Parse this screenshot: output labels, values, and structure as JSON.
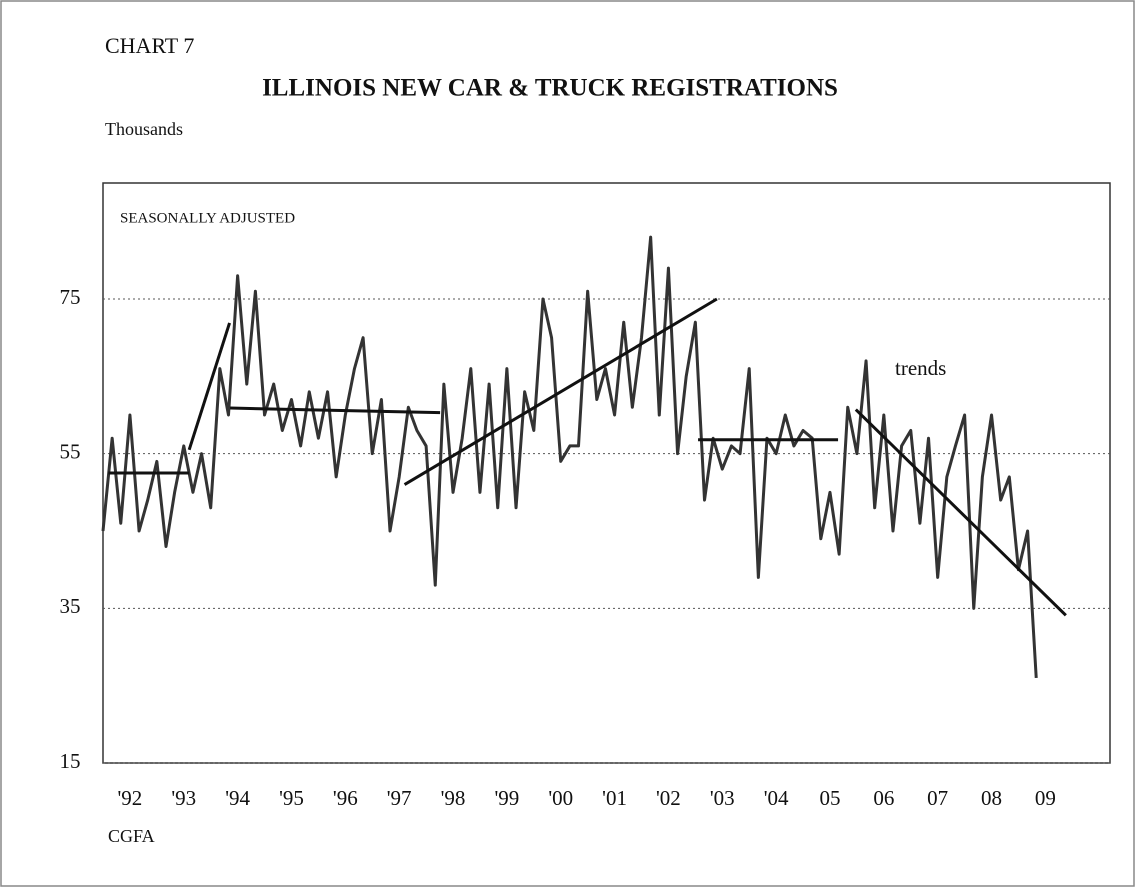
{
  "chart_data": {
    "type": "line",
    "label": "CHART 7",
    "title": "ILLINOIS NEW CAR & TRUCK REGISTRATIONS",
    "y_label": "Thousands",
    "subtitle": "SEASONALLY ADJUSTED",
    "annotation": "trends",
    "source": "CGFA",
    "xlim": [
      1992,
      2010.7
    ],
    "ylim": [
      15,
      90
    ],
    "yticks": [
      15,
      35,
      55,
      75
    ],
    "grid": true,
    "xticks": [
      {
        "value": 1992.5,
        "label": "'92"
      },
      {
        "value": 1993.5,
        "label": "'93"
      },
      {
        "value": 1994.5,
        "label": "'94"
      },
      {
        "value": 1995.5,
        "label": "'95"
      },
      {
        "value": 1996.5,
        "label": "'96"
      },
      {
        "value": 1997.5,
        "label": "'97"
      },
      {
        "value": 1998.5,
        "label": "'98"
      },
      {
        "value": 1999.5,
        "label": "'99"
      },
      {
        "value": 2000.5,
        "label": "'00"
      },
      {
        "value": 2001.5,
        "label": "'01"
      },
      {
        "value": 2002.5,
        "label": "'02"
      },
      {
        "value": 2003.5,
        "label": "'03"
      },
      {
        "value": 2004.5,
        "label": "'04"
      },
      {
        "value": 2005.5,
        "label": "05"
      },
      {
        "value": 2006.5,
        "label": "06"
      },
      {
        "value": 2007.5,
        "label": "07"
      },
      {
        "value": 2008.5,
        "label": "08"
      },
      {
        "value": 2009.5,
        "label": "09"
      }
    ],
    "series": [
      {
        "color": "#333333",
        "width": 3,
        "x": [
          1992,
          1992.17,
          1992.33,
          1992.5,
          1992.67,
          1992.83,
          1993,
          1993.17,
          1993.33,
          1993.5,
          1993.67,
          1993.83,
          1994,
          1994.17,
          1994.33,
          1994.5,
          1994.67,
          1994.83,
          1995,
          1995.17,
          1995.33,
          1995.5,
          1995.67,
          1995.83,
          1996,
          1996.17,
          1996.33,
          1996.5,
          1996.67,
          1996.83,
          1997,
          1997.17,
          1997.33,
          1997.5,
          1997.67,
          1997.83,
          1998,
          1998.17,
          1998.33,
          1998.5,
          1998.67,
          1998.83,
          1999,
          1999.17,
          1999.33,
          1999.5,
          1999.67,
          1999.83,
          2000,
          2000.17,
          2000.33,
          2000.5,
          2000.67,
          2000.83,
          2001,
          2001.17,
          2001.33,
          2001.5,
          2001.67,
          2001.83,
          2002,
          2002.17,
          2002.33,
          2002.5,
          2002.67,
          2002.83,
          2003,
          2003.17,
          2003.33,
          2003.5,
          2003.67,
          2003.83,
          2004,
          2004.17,
          2004.33,
          2004.5,
          2004.67,
          2004.83,
          2005,
          2005.17,
          2005.33,
          2005.5,
          2005.67,
          2005.83,
          2006,
          2006.17,
          2006.33,
          2006.5,
          2006.67,
          2006.83,
          2007,
          2007.17,
          2007.33,
          2007.5,
          2007.67,
          2007.83,
          2008,
          2008.17,
          2008.33,
          2008.5,
          2008.67,
          2008.83,
          2009,
          2009.17,
          2009.33
        ],
        "values": [
          45,
          57,
          46,
          60,
          45,
          49,
          54,
          43,
          50,
          56,
          50,
          55,
          48,
          66,
          60,
          78,
          64,
          76,
          60,
          64,
          58,
          62,
          56,
          63,
          57,
          63,
          52,
          60,
          66,
          70,
          55,
          62,
          45,
          52,
          61,
          58,
          56,
          38,
          64,
          50,
          57,
          66,
          50,
          64,
          48,
          66,
          48,
          63,
          58,
          75,
          70,
          54,
          56,
          56,
          76,
          62,
          66,
          60,
          72,
          61,
          70,
          83,
          60,
          79,
          55,
          65,
          72,
          49,
          57,
          53,
          56,
          55,
          66,
          39,
          57,
          55,
          60,
          56,
          58,
          57,
          44,
          50,
          42,
          61,
          55,
          67,
          48,
          60,
          45,
          56,
          58,
          46,
          57,
          39,
          52,
          56,
          60,
          35,
          52,
          60,
          49,
          52,
          40,
          45,
          26
        ]
      },
      {
        "color": "#111111",
        "width": 3,
        "x": [
          1992.1,
          1993.6
        ],
        "values": [
          52.5,
          52.5
        ]
      },
      {
        "color": "#111111",
        "width": 3,
        "x": [
          1993.6,
          1994.35
        ],
        "values": [
          55.5,
          71.9
        ]
      },
      {
        "color": "#111111",
        "width": 3,
        "x": [
          1994.36,
          1998.26
        ],
        "values": [
          60.9,
          60.3
        ]
      },
      {
        "color": "#111111",
        "width": 3,
        "x": [
          1997.6,
          2003.4
        ],
        "values": [
          51,
          75
        ]
      },
      {
        "color": "#111111",
        "width": 3,
        "x": [
          2003.05,
          2005.65
        ],
        "values": [
          56.8,
          56.8
        ]
      },
      {
        "color": "#111111",
        "width": 3,
        "x": [
          2005.98,
          2009.88
        ],
        "values": [
          60.7,
          34.1
        ]
      }
    ]
  }
}
